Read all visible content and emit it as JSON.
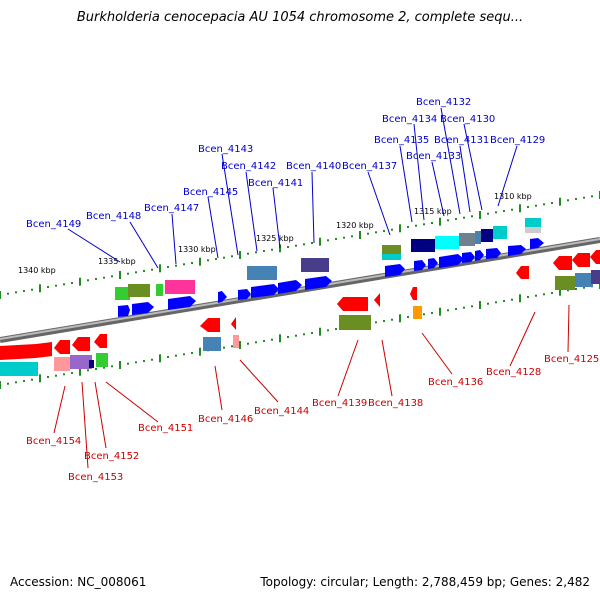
{
  "title": "Burkholderia cenocepacia AU 1054 chromosome 2, complete sequ...",
  "footer": {
    "accession": "Accession: NC_008061",
    "topology": "Topology: circular; Length: 2,788,459 bp; Genes: 2,482"
  },
  "colors": {
    "backbone": "#888888",
    "tick": "#228b22",
    "top_label": "#0000cc",
    "bottom_label": "#cc0000"
  },
  "kbp_marks": [
    "1340 kbp",
    "1335 kbp",
    "1330 kbp",
    "1325 kbp",
    "1320 kbp",
    "1315 kbp",
    "1310 kbp"
  ],
  "genes_top": [
    "Bcen_4149",
    "Bcen_4148",
    "Bcen_4147",
    "Bcen_4145",
    "Bcen_4143",
    "Bcen_4142",
    "Bcen_4141",
    "Bcen_4140",
    "Bcen_4137",
    "Bcen_4135",
    "Bcen_4134",
    "Bcen_4133",
    "Bcen_4132",
    "Bcen_4131",
    "Bcen_4130",
    "Bcen_4129"
  ],
  "genes_bottom": [
    "Bcen_4154",
    "Bcen_4153",
    "Bcen_4152",
    "Bcen_4151",
    "Bcen_4146",
    "Bcen_4144",
    "Bcen_4139",
    "Bcen_4138",
    "Bcen_4136",
    "Bcen_4128",
    "Bcen_4125"
  ]
}
